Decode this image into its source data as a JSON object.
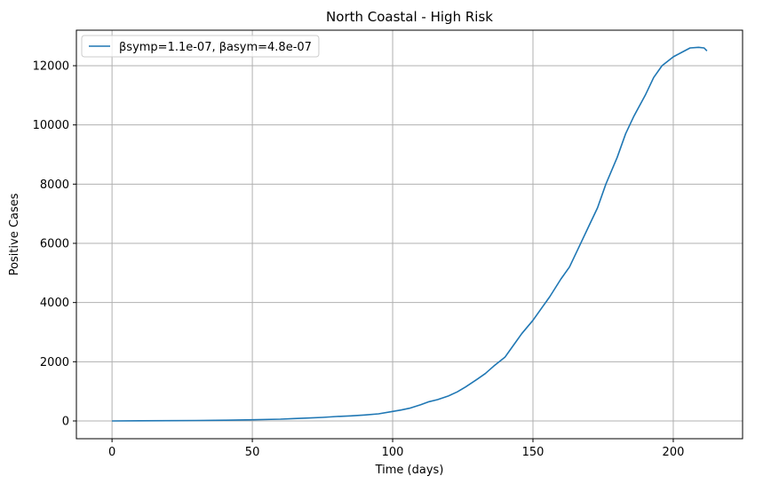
{
  "chart_data": {
    "type": "line",
    "title": "North Coastal - High Risk",
    "xlabel": "Time (days)",
    "ylabel": "Positive Cases",
    "xlim": [
      -12.7,
      224.7
    ],
    "ylim": [
      -600,
      13200
    ],
    "xticks": [
      0,
      50,
      100,
      150,
      200
    ],
    "yticks": [
      0,
      2000,
      4000,
      6000,
      8000,
      10000,
      12000
    ],
    "grid": true,
    "legend_position": "top-left",
    "series": [
      {
        "name": "βsymp=1.1e-07, βasym=4.8e-07",
        "color": "#1f77b4",
        "x": [
          0,
          10,
          20,
          30,
          40,
          50,
          60,
          65,
          70,
          75,
          80,
          85,
          90,
          95,
          100,
          103,
          106,
          110,
          113,
          116,
          120,
          123,
          126,
          130,
          133,
          136,
          140,
          143,
          146,
          150,
          153,
          156,
          160,
          163,
          166,
          170,
          173,
          176,
          180,
          183,
          186,
          190,
          193,
          196,
          200,
          203,
          206,
          209,
          211,
          212
        ],
        "values": [
          0,
          5,
          10,
          15,
          25,
          40,
          60,
          80,
          100,
          120,
          150,
          170,
          200,
          240,
          320,
          370,
          430,
          550,
          650,
          720,
          850,
          980,
          1150,
          1400,
          1600,
          1850,
          2150,
          2550,
          2950,
          3400,
          3800,
          4200,
          4800,
          5200,
          5800,
          6600,
          7200,
          8000,
          8900,
          9700,
          10300,
          11000,
          11600,
          12000,
          12300,
          12450,
          12600,
          12620,
          12600,
          12500
        ]
      }
    ]
  }
}
